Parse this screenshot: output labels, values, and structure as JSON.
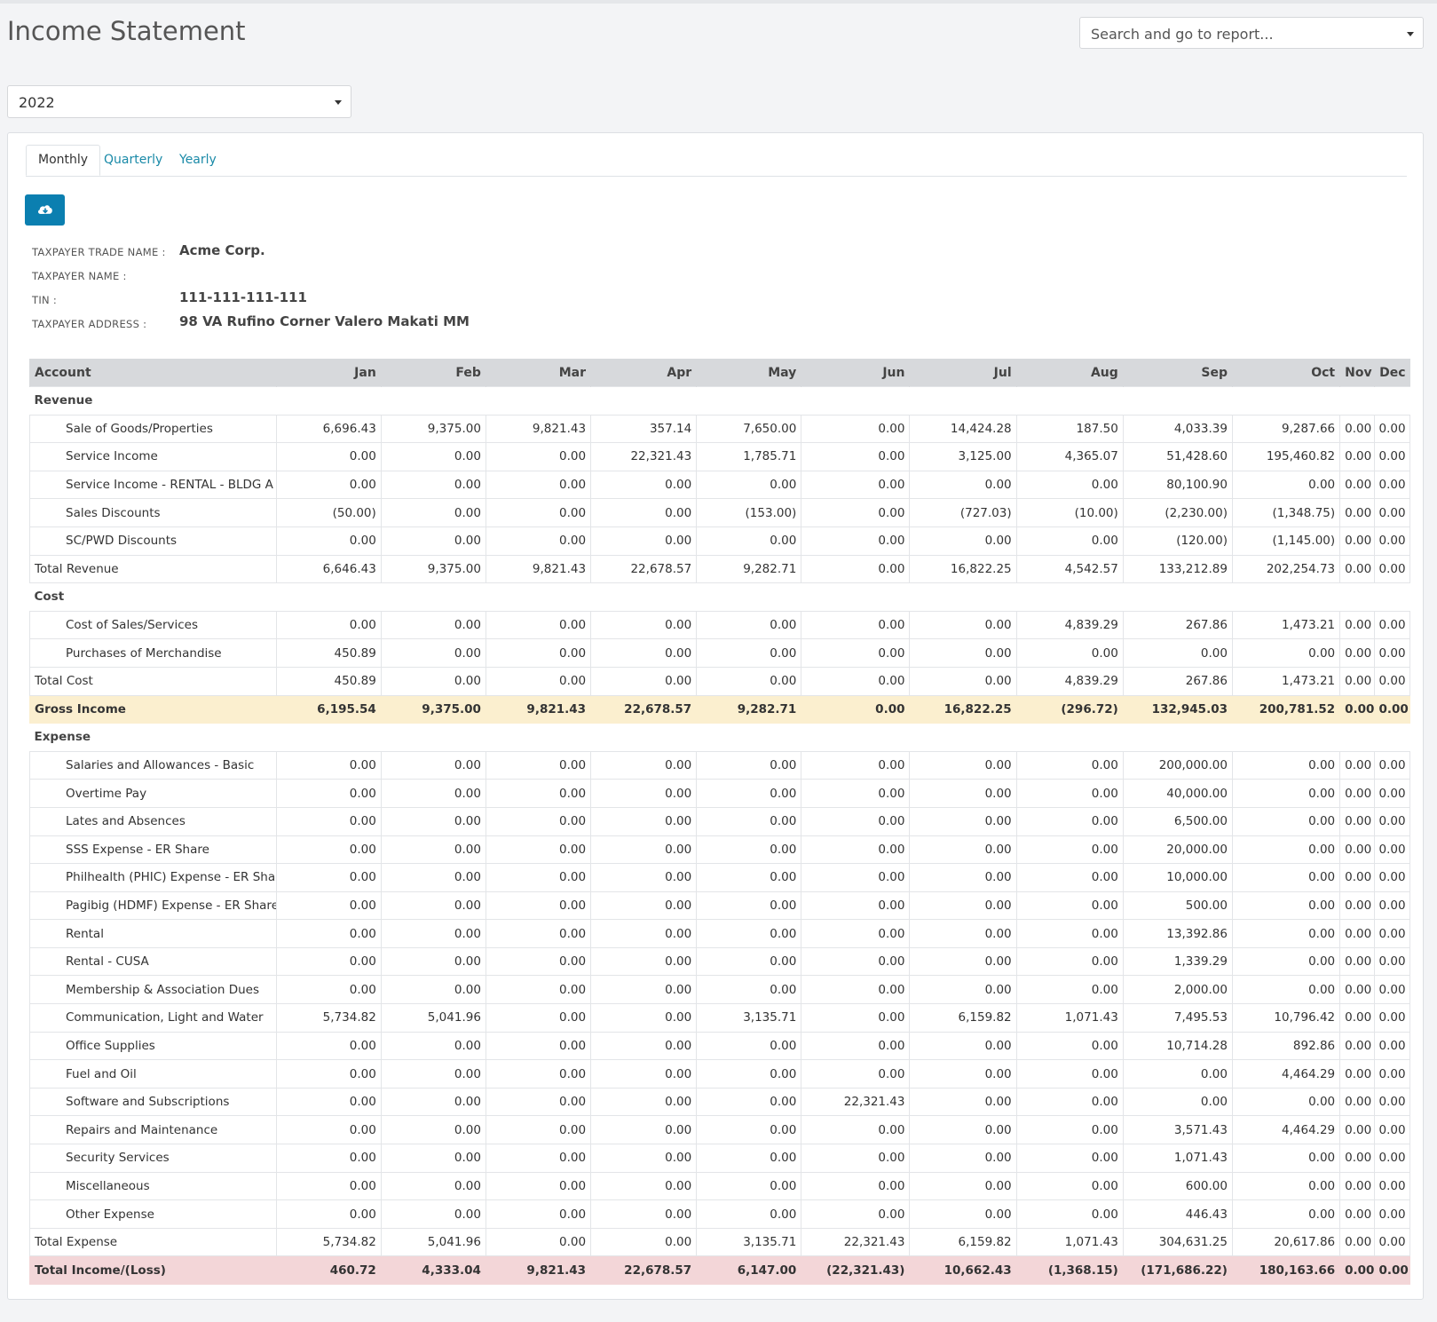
{
  "page": {
    "title": "Income Statement",
    "search_placeholder": "Search and go to report...",
    "year_selected": "2022",
    "tabs": [
      "Monthly",
      "Quarterly",
      "Yearly"
    ],
    "active_tab": "Monthly",
    "download_icon": "cloud-download-icon"
  },
  "taxpayer": {
    "trade_name_label": "TAXPAYER TRADE NAME :",
    "trade_name": "Acme Corp.",
    "name_label": "TAXPAYER NAME :",
    "name": "",
    "tin_label": "TIN :",
    "tin": "111-111-111-111",
    "address_label": "TAXPAYER ADDRESS :",
    "address": "98 VA Rufino Corner Valero Makati MM"
  },
  "table": {
    "columns": [
      "Account",
      "Jan",
      "Feb",
      "Mar",
      "Apr",
      "May",
      "Jun",
      "Jul",
      "Aug",
      "Sep",
      "Oct",
      "Nov",
      "Dec"
    ],
    "rows": [
      {
        "type": "section",
        "label": "Revenue"
      },
      {
        "type": "item",
        "label": "Sale of Goods/Properties",
        "values": [
          "6,696.43",
          "9,375.00",
          "9,821.43",
          "357.14",
          "7,650.00",
          "0.00",
          "14,424.28",
          "187.50",
          "4,033.39",
          "9,287.66",
          "0.00",
          "0.00"
        ]
      },
      {
        "type": "item",
        "label": "Service Income",
        "values": [
          "0.00",
          "0.00",
          "0.00",
          "22,321.43",
          "1,785.71",
          "0.00",
          "3,125.00",
          "4,365.07",
          "51,428.60",
          "195,460.82",
          "0.00",
          "0.00"
        ]
      },
      {
        "type": "item",
        "label": "Service Income - RENTAL - BLDG A",
        "values": [
          "0.00",
          "0.00",
          "0.00",
          "0.00",
          "0.00",
          "0.00",
          "0.00",
          "0.00",
          "80,100.90",
          "0.00",
          "0.00",
          "0.00"
        ]
      },
      {
        "type": "item",
        "label": "Sales Discounts",
        "values": [
          "(50.00)",
          "0.00",
          "0.00",
          "0.00",
          "(153.00)",
          "0.00",
          "(727.03)",
          "(10.00)",
          "(2,230.00)",
          "(1,348.75)",
          "0.00",
          "0.00"
        ]
      },
      {
        "type": "item",
        "label": "SC/PWD Discounts",
        "values": [
          "0.00",
          "0.00",
          "0.00",
          "0.00",
          "0.00",
          "0.00",
          "0.00",
          "0.00",
          "(120.00)",
          "(1,145.00)",
          "0.00",
          "0.00"
        ]
      },
      {
        "type": "total",
        "label": "Total Revenue",
        "values": [
          "6,646.43",
          "9,375.00",
          "9,821.43",
          "22,678.57",
          "9,282.71",
          "0.00",
          "16,822.25",
          "4,542.57",
          "133,212.89",
          "202,254.73",
          "0.00",
          "0.00"
        ]
      },
      {
        "type": "section",
        "label": "Cost"
      },
      {
        "type": "item",
        "label": "Cost of Sales/Services",
        "values": [
          "0.00",
          "0.00",
          "0.00",
          "0.00",
          "0.00",
          "0.00",
          "0.00",
          "4,839.29",
          "267.86",
          "1,473.21",
          "0.00",
          "0.00"
        ]
      },
      {
        "type": "item",
        "label": "Purchases of Merchandise",
        "values": [
          "450.89",
          "0.00",
          "0.00",
          "0.00",
          "0.00",
          "0.00",
          "0.00",
          "0.00",
          "0.00",
          "0.00",
          "0.00",
          "0.00"
        ]
      },
      {
        "type": "total",
        "label": "Total Cost",
        "values": [
          "450.89",
          "0.00",
          "0.00",
          "0.00",
          "0.00",
          "0.00",
          "0.00",
          "4,839.29",
          "267.86",
          "1,473.21",
          "0.00",
          "0.00"
        ]
      },
      {
        "type": "gross",
        "label": "Gross Income",
        "values": [
          "6,195.54",
          "9,375.00",
          "9,821.43",
          "22,678.57",
          "9,282.71",
          "0.00",
          "16,822.25",
          "(296.72)",
          "132,945.03",
          "200,781.52",
          "0.00",
          "0.00"
        ]
      },
      {
        "type": "section",
        "label": "Expense"
      },
      {
        "type": "item",
        "label": "Salaries and Allowances - Basic",
        "values": [
          "0.00",
          "0.00",
          "0.00",
          "0.00",
          "0.00",
          "0.00",
          "0.00",
          "0.00",
          "200,000.00",
          "0.00",
          "0.00",
          "0.00"
        ]
      },
      {
        "type": "item",
        "label": "Overtime Pay",
        "values": [
          "0.00",
          "0.00",
          "0.00",
          "0.00",
          "0.00",
          "0.00",
          "0.00",
          "0.00",
          "40,000.00",
          "0.00",
          "0.00",
          "0.00"
        ]
      },
      {
        "type": "item",
        "label": "Lates and Absences",
        "values": [
          "0.00",
          "0.00",
          "0.00",
          "0.00",
          "0.00",
          "0.00",
          "0.00",
          "0.00",
          "6,500.00",
          "0.00",
          "0.00",
          "0.00"
        ]
      },
      {
        "type": "item",
        "label": "SSS Expense - ER Share",
        "values": [
          "0.00",
          "0.00",
          "0.00",
          "0.00",
          "0.00",
          "0.00",
          "0.00",
          "0.00",
          "20,000.00",
          "0.00",
          "0.00",
          "0.00"
        ]
      },
      {
        "type": "item",
        "label": "Philhealth (PHIC) Expense - ER Share",
        "values": [
          "0.00",
          "0.00",
          "0.00",
          "0.00",
          "0.00",
          "0.00",
          "0.00",
          "0.00",
          "10,000.00",
          "0.00",
          "0.00",
          "0.00"
        ]
      },
      {
        "type": "item",
        "label": "Pagibig (HDMF) Expense - ER Share",
        "values": [
          "0.00",
          "0.00",
          "0.00",
          "0.00",
          "0.00",
          "0.00",
          "0.00",
          "0.00",
          "500.00",
          "0.00",
          "0.00",
          "0.00"
        ]
      },
      {
        "type": "item",
        "label": "Rental",
        "values": [
          "0.00",
          "0.00",
          "0.00",
          "0.00",
          "0.00",
          "0.00",
          "0.00",
          "0.00",
          "13,392.86",
          "0.00",
          "0.00",
          "0.00"
        ]
      },
      {
        "type": "item",
        "label": "Rental - CUSA",
        "values": [
          "0.00",
          "0.00",
          "0.00",
          "0.00",
          "0.00",
          "0.00",
          "0.00",
          "0.00",
          "1,339.29",
          "0.00",
          "0.00",
          "0.00"
        ]
      },
      {
        "type": "item",
        "label": "Membership & Association Dues",
        "values": [
          "0.00",
          "0.00",
          "0.00",
          "0.00",
          "0.00",
          "0.00",
          "0.00",
          "0.00",
          "2,000.00",
          "0.00",
          "0.00",
          "0.00"
        ]
      },
      {
        "type": "item",
        "label": "Communication, Light and Water",
        "values": [
          "5,734.82",
          "5,041.96",
          "0.00",
          "0.00",
          "3,135.71",
          "0.00",
          "6,159.82",
          "1,071.43",
          "7,495.53",
          "10,796.42",
          "0.00",
          "0.00"
        ]
      },
      {
        "type": "item",
        "label": "Office Supplies",
        "values": [
          "0.00",
          "0.00",
          "0.00",
          "0.00",
          "0.00",
          "0.00",
          "0.00",
          "0.00",
          "10,714.28",
          "892.86",
          "0.00",
          "0.00"
        ]
      },
      {
        "type": "item",
        "label": "Fuel and Oil",
        "values": [
          "0.00",
          "0.00",
          "0.00",
          "0.00",
          "0.00",
          "0.00",
          "0.00",
          "0.00",
          "0.00",
          "4,464.29",
          "0.00",
          "0.00"
        ]
      },
      {
        "type": "item",
        "label": "Software and Subscriptions",
        "values": [
          "0.00",
          "0.00",
          "0.00",
          "0.00",
          "0.00",
          "22,321.43",
          "0.00",
          "0.00",
          "0.00",
          "0.00",
          "0.00",
          "0.00"
        ]
      },
      {
        "type": "item",
        "label": "Repairs and Maintenance",
        "values": [
          "0.00",
          "0.00",
          "0.00",
          "0.00",
          "0.00",
          "0.00",
          "0.00",
          "0.00",
          "3,571.43",
          "4,464.29",
          "0.00",
          "0.00"
        ]
      },
      {
        "type": "item",
        "label": "Security Services",
        "values": [
          "0.00",
          "0.00",
          "0.00",
          "0.00",
          "0.00",
          "0.00",
          "0.00",
          "0.00",
          "1,071.43",
          "0.00",
          "0.00",
          "0.00"
        ]
      },
      {
        "type": "item",
        "label": "Miscellaneous",
        "values": [
          "0.00",
          "0.00",
          "0.00",
          "0.00",
          "0.00",
          "0.00",
          "0.00",
          "0.00",
          "600.00",
          "0.00",
          "0.00",
          "0.00"
        ]
      },
      {
        "type": "item",
        "label": "Other Expense",
        "values": [
          "0.00",
          "0.00",
          "0.00",
          "0.00",
          "0.00",
          "0.00",
          "0.00",
          "0.00",
          "446.43",
          "0.00",
          "0.00",
          "0.00"
        ]
      },
      {
        "type": "total",
        "label": "Total Expense",
        "values": [
          "5,734.82",
          "5,041.96",
          "0.00",
          "0.00",
          "3,135.71",
          "22,321.43",
          "6,159.82",
          "1,071.43",
          "304,631.25",
          "20,617.86",
          "0.00",
          "0.00"
        ]
      },
      {
        "type": "net",
        "label": "Total Income/(Loss)",
        "values": [
          "460.72",
          "4,333.04",
          "9,821.43",
          "22,678.57",
          "6,147.00",
          "(22,321.43)",
          "10,662.43",
          "(1,368.15)",
          "(171,686.22)",
          "180,163.66",
          "0.00",
          "0.00"
        ]
      }
    ]
  },
  "colors": {
    "accent": "#0b7fb0",
    "link": "#1a8aa8",
    "total_row": "#cff4fb",
    "gross_row": "#fbefcf",
    "net_row": "#f3d6d8",
    "header_row": "#d7d9dc"
  }
}
